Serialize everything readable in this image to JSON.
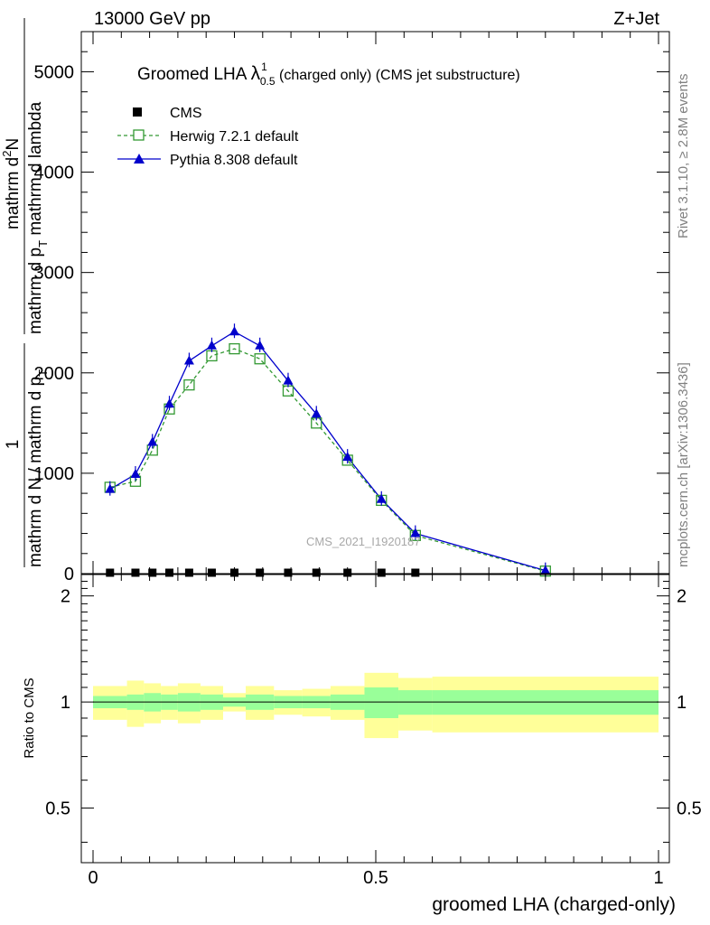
{
  "header": {
    "left": "13000 GeV pp",
    "right": "Z+Jet"
  },
  "side_labels": {
    "rivet": "Rivet 3.1.10, ≥ 2.8M events",
    "mcplots": "mcplots.cern.ch [arXiv:1306.3436]"
  },
  "title": {
    "prefix": "Groomed LHA ",
    "symbol": "λ",
    "sup": "1",
    "sub": "0.5",
    "suffix": " (charged only) (CMS jet substructure)"
  },
  "ylabel_main": {
    "frac1_num": "1",
    "frac1_den": "mathrm d N / mathrm d p",
    "frac1_den_sub": "T",
    "frac2_num": "mathrm d",
    "frac2_num_sup": "2",
    "frac2_num_tail": "N",
    "frac2_den": "mathrm d p",
    "frac2_den_sub": "T",
    "frac2_den_tail": " mathrm d lambda"
  },
  "ylabel_ratio": "Ratio to CMS",
  "xlabel": "groomed LHA (charged-only)",
  "watermark": "CMS_2021_I1920187",
  "legend": [
    {
      "label": "CMS",
      "marker": "filled-square",
      "color": "#000000"
    },
    {
      "label": "Herwig 7.2.1 default",
      "marker": "open-square",
      "color": "#339933",
      "dash": true
    },
    {
      "label": "Pythia 8.308 default",
      "marker": "filled-triangle",
      "color": "#0000cc",
      "dash": false
    }
  ],
  "chart_data": [
    {
      "type": "line",
      "panel": "main",
      "xlim": [
        0,
        1
      ],
      "ylim": [
        0,
        5400
      ],
      "y_ticks": [
        0,
        1000,
        2000,
        3000,
        4000,
        5000
      ],
      "y_tick_labels": [
        "0",
        "1000",
        "2000",
        "3000",
        "4000",
        "5000"
      ],
      "series": [
        {
          "name": "CMS",
          "x": [
            0.03,
            0.075,
            0.105,
            0.135,
            0.17,
            0.21,
            0.25,
            0.295,
            0.345,
            0.395,
            0.45,
            0.51,
            0.57
          ],
          "y": [
            0,
            0,
            0,
            0,
            0,
            0,
            0,
            0,
            0,
            0,
            0,
            0,
            0
          ]
        },
        {
          "name": "Herwig 7.2.1 default",
          "x": [
            0.03,
            0.075,
            0.105,
            0.135,
            0.17,
            0.21,
            0.25,
            0.295,
            0.345,
            0.395,
            0.45,
            0.51,
            0.57,
            0.8
          ],
          "y": [
            860,
            920,
            1230,
            1640,
            1880,
            2170,
            2240,
            2140,
            1820,
            1500,
            1130,
            730,
            380,
            25
          ]
        },
        {
          "name": "Pythia 8.308 default",
          "x": [
            0.03,
            0.075,
            0.105,
            0.135,
            0.17,
            0.21,
            0.25,
            0.295,
            0.345,
            0.395,
            0.45,
            0.51,
            0.57,
            0.8
          ],
          "y": [
            840,
            990,
            1310,
            1690,
            2120,
            2270,
            2410,
            2270,
            1920,
            1590,
            1160,
            740,
            400,
            30
          ]
        }
      ]
    },
    {
      "type": "area",
      "panel": "ratio",
      "ylabel": "Ratio to CMS",
      "xlim": [
        0,
        1
      ],
      "ylim": [
        0.35,
        2.3
      ],
      "y_ticks": [
        0.5,
        1,
        2
      ],
      "y_tick_labels": [
        "0.5",
        "1",
        "2"
      ],
      "x_ticks": [
        0,
        0.5,
        1
      ],
      "x_tick_labels": [
        "0",
        "0.5",
        "1"
      ],
      "bin_edges": [
        0,
        0.06,
        0.09,
        0.12,
        0.15,
        0.19,
        0.23,
        0.27,
        0.32,
        0.37,
        0.42,
        0.48,
        0.54,
        0.6,
        1.0
      ],
      "band_1sigma_lo": [
        0.96,
        0.95,
        0.94,
        0.95,
        0.94,
        0.95,
        0.97,
        0.95,
        0.96,
        0.96,
        0.95,
        0.9,
        0.92,
        0.92
      ],
      "band_1sigma_hi": [
        1.04,
        1.05,
        1.06,
        1.05,
        1.06,
        1.05,
        1.03,
        1.05,
        1.04,
        1.04,
        1.05,
        1.1,
        1.08,
        1.08
      ],
      "band_2sigma_lo": [
        0.89,
        0.85,
        0.87,
        0.89,
        0.87,
        0.89,
        0.94,
        0.89,
        0.92,
        0.91,
        0.89,
        0.79,
        0.83,
        0.82
      ],
      "band_2sigma_hi": [
        1.11,
        1.15,
        1.13,
        1.11,
        1.13,
        1.11,
        1.06,
        1.11,
        1.08,
        1.09,
        1.11,
        1.21,
        1.17,
        1.18
      ],
      "colors": {
        "band_1sigma": "#99ff99",
        "band_2sigma": "#ffff99"
      },
      "reference_line": 1
    }
  ]
}
